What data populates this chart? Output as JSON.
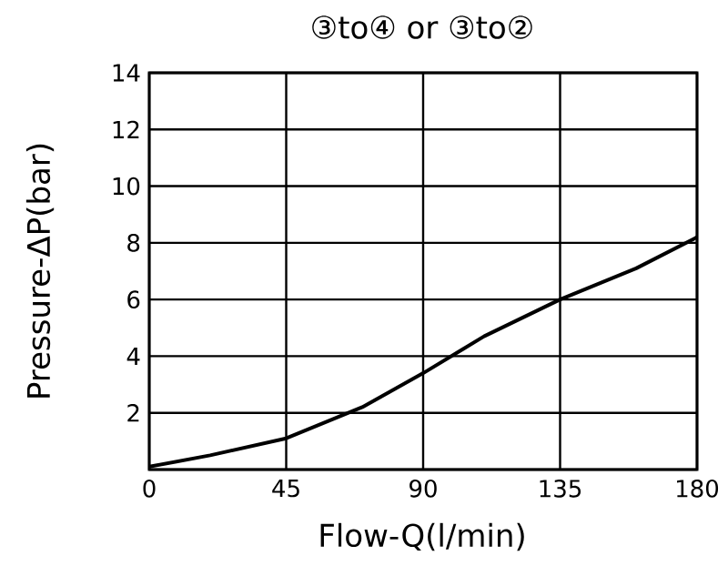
{
  "chart_data": {
    "type": "line",
    "title": "③to④ or ③to②",
    "xlabel": "Flow-Q(l/min)",
    "ylabel": "Pressure-ΔP(bar)",
    "x": [
      0,
      20,
      45,
      70,
      90,
      110,
      135,
      160,
      180
    ],
    "series": [
      {
        "color": "#000000",
        "values": [
          0.1,
          0.5,
          1.1,
          2.2,
          3.4,
          4.7,
          6.0,
          7.1,
          8.2
        ]
      }
    ],
    "xlim": [
      0,
      180
    ],
    "ylim": [
      0,
      14
    ],
    "xticks": [
      0,
      45,
      90,
      135,
      180
    ],
    "yticks": [
      {
        "value": 0,
        "label": null
      },
      2,
      4,
      6,
      8,
      10,
      12,
      14
    ],
    "grid": true,
    "marker": "none",
    "line_style": "solid"
  }
}
